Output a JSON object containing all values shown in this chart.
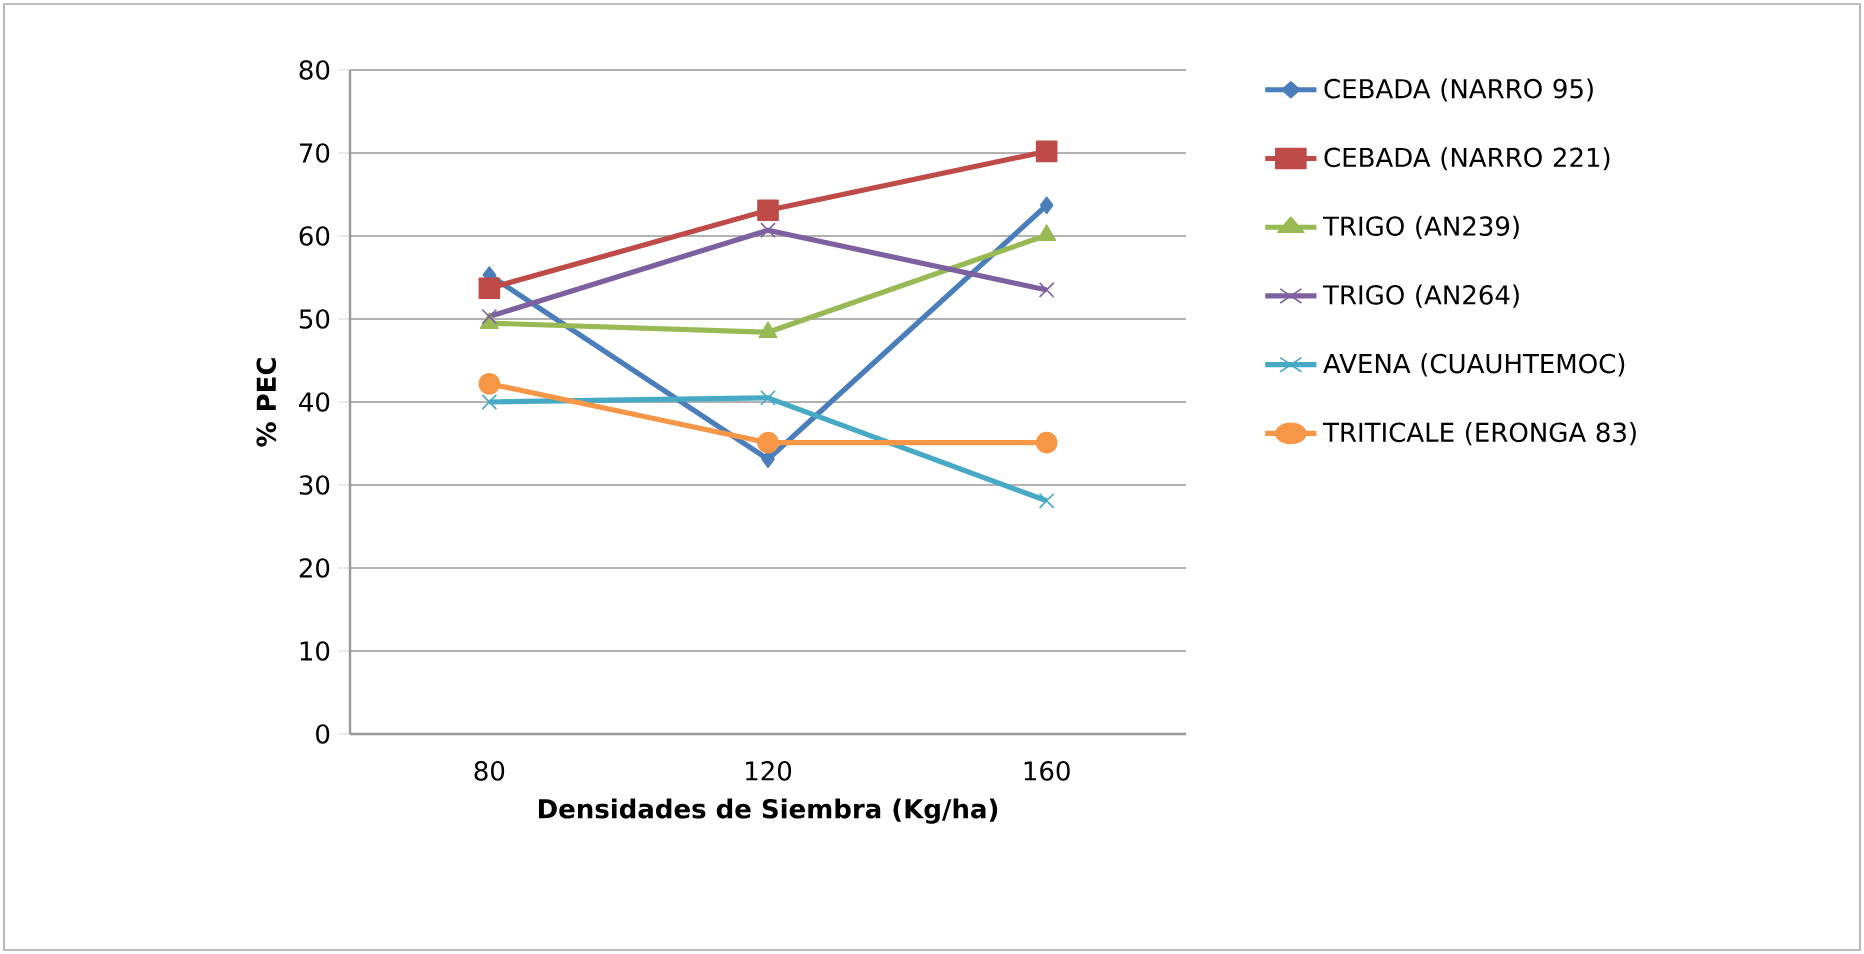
{
  "chart_data": {
    "type": "line",
    "xlabel": "Densidades de Siembra (Kg/ha)",
    "ylabel": "% PEC",
    "categories": [
      "80",
      "120",
      "160"
    ],
    "series": [
      {
        "name": "CEBADA (NARRO 95)",
        "color": "#4a7ebb",
        "marker": "diamond",
        "values": [
          55.3,
          33.1,
          63.7
        ]
      },
      {
        "name": "CEBADA (NARRO 221)",
        "color": "#be4b48",
        "marker": "square",
        "values": [
          53.7,
          63.1,
          70.2
        ]
      },
      {
        "name": "TRIGO (AN239)",
        "color": "#98b954",
        "marker": "triangle",
        "values": [
          49.5,
          48.4,
          60.1
        ]
      },
      {
        "name": "TRIGO (AN264)",
        "color": "#7d60a0",
        "marker": "cross",
        "values": [
          50.3,
          60.7,
          53.5
        ]
      },
      {
        "name": "AVENA (CUAUHTEMOC)",
        "color": "#46aac5",
        "marker": "cross",
        "values": [
          40.0,
          40.5,
          28.1
        ]
      },
      {
        "name": "TRITICALE (ERONGA 83)",
        "color": "#f79646",
        "marker": "circle",
        "values": [
          42.2,
          35.1,
          35.1
        ]
      }
    ],
    "ylim": [
      0,
      80
    ],
    "yticks": [
      0,
      10,
      20,
      30,
      40,
      50,
      60,
      70,
      80
    ],
    "grid": "y",
    "legend": "right"
  }
}
